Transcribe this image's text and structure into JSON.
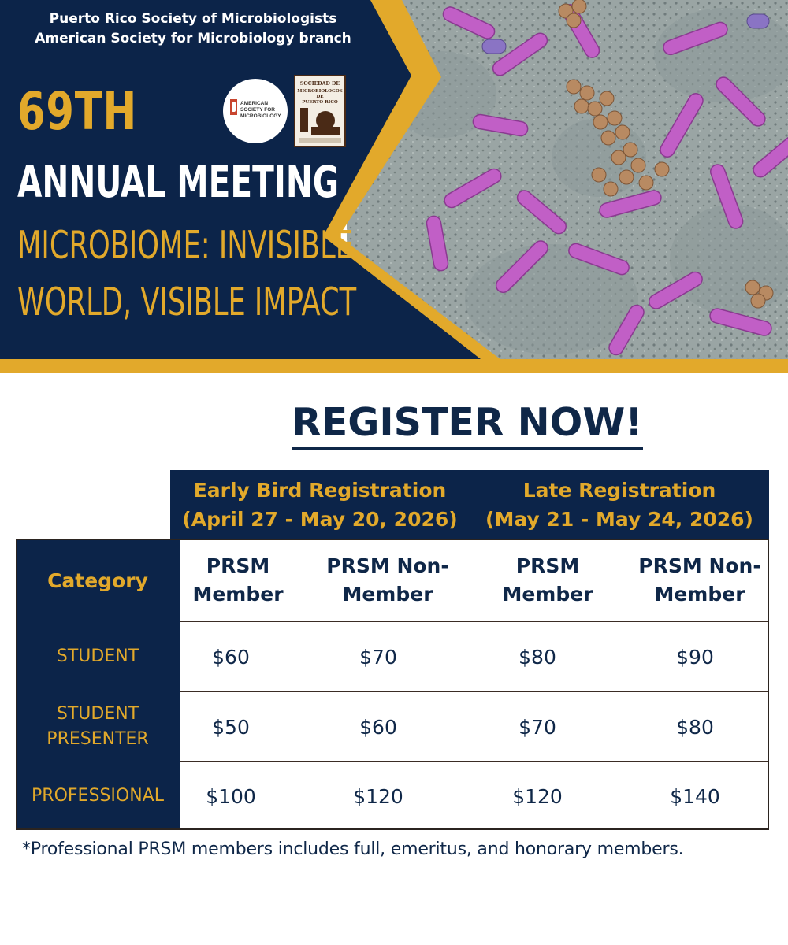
{
  "header": {
    "org_line_1": "Puerto Rico Society of Microbiologists",
    "org_line_2": "American Society for Microbiology branch",
    "edition": "69TH",
    "event": "ANNUAL MEETING",
    "theme_line_1": "MICROBIOME: INVISIBLE",
    "theme_line_2": "WORLD, VISIBLE IMPACT",
    "logos": [
      {
        "name": "asm-logo",
        "text": "AMERICAN SOCIETY FOR MICROBIOLOGY"
      },
      {
        "name": "prsm-logo",
        "text": "SOCIEDAD DE MICROBIOLOGOS DE PUERTO RICO"
      }
    ],
    "colors": {
      "navy": "#0c2449",
      "gold": "#e2a92b",
      "white": "#ffffff"
    }
  },
  "register": {
    "title": "REGISTER NOW!"
  },
  "table": {
    "periods": [
      {
        "name": "Early Bird Registration",
        "dates": "(April 27 - May 20, 2026)"
      },
      {
        "name": "Late Registration",
        "dates": "(May 21 - May 24, 2026)"
      }
    ],
    "category_header": "Category",
    "member_headers": [
      {
        "line1": "PRSM",
        "line2": "Member"
      },
      {
        "line1": "PRSM Non-",
        "line2": "Member"
      },
      {
        "line1": "PRSM",
        "line2": "Member"
      },
      {
        "line1": "PRSM Non-",
        "line2": "Member"
      }
    ],
    "rows": [
      {
        "category_line1": "STUDENT",
        "category_line2": "",
        "prices": [
          "$60",
          "$70",
          "$80",
          "$90"
        ]
      },
      {
        "category_line1": "STUDENT",
        "category_line2": "PRESENTER",
        "prices": [
          "$50",
          "$60",
          "$70",
          "$80"
        ]
      },
      {
        "category_line1": "PROFESSIONAL",
        "category_line2": "",
        "prices": [
          "$100",
          "$120",
          "$120",
          "$140"
        ]
      }
    ]
  },
  "footnote": "*Professional PRSM members includes full, emeritus, and honorary members."
}
